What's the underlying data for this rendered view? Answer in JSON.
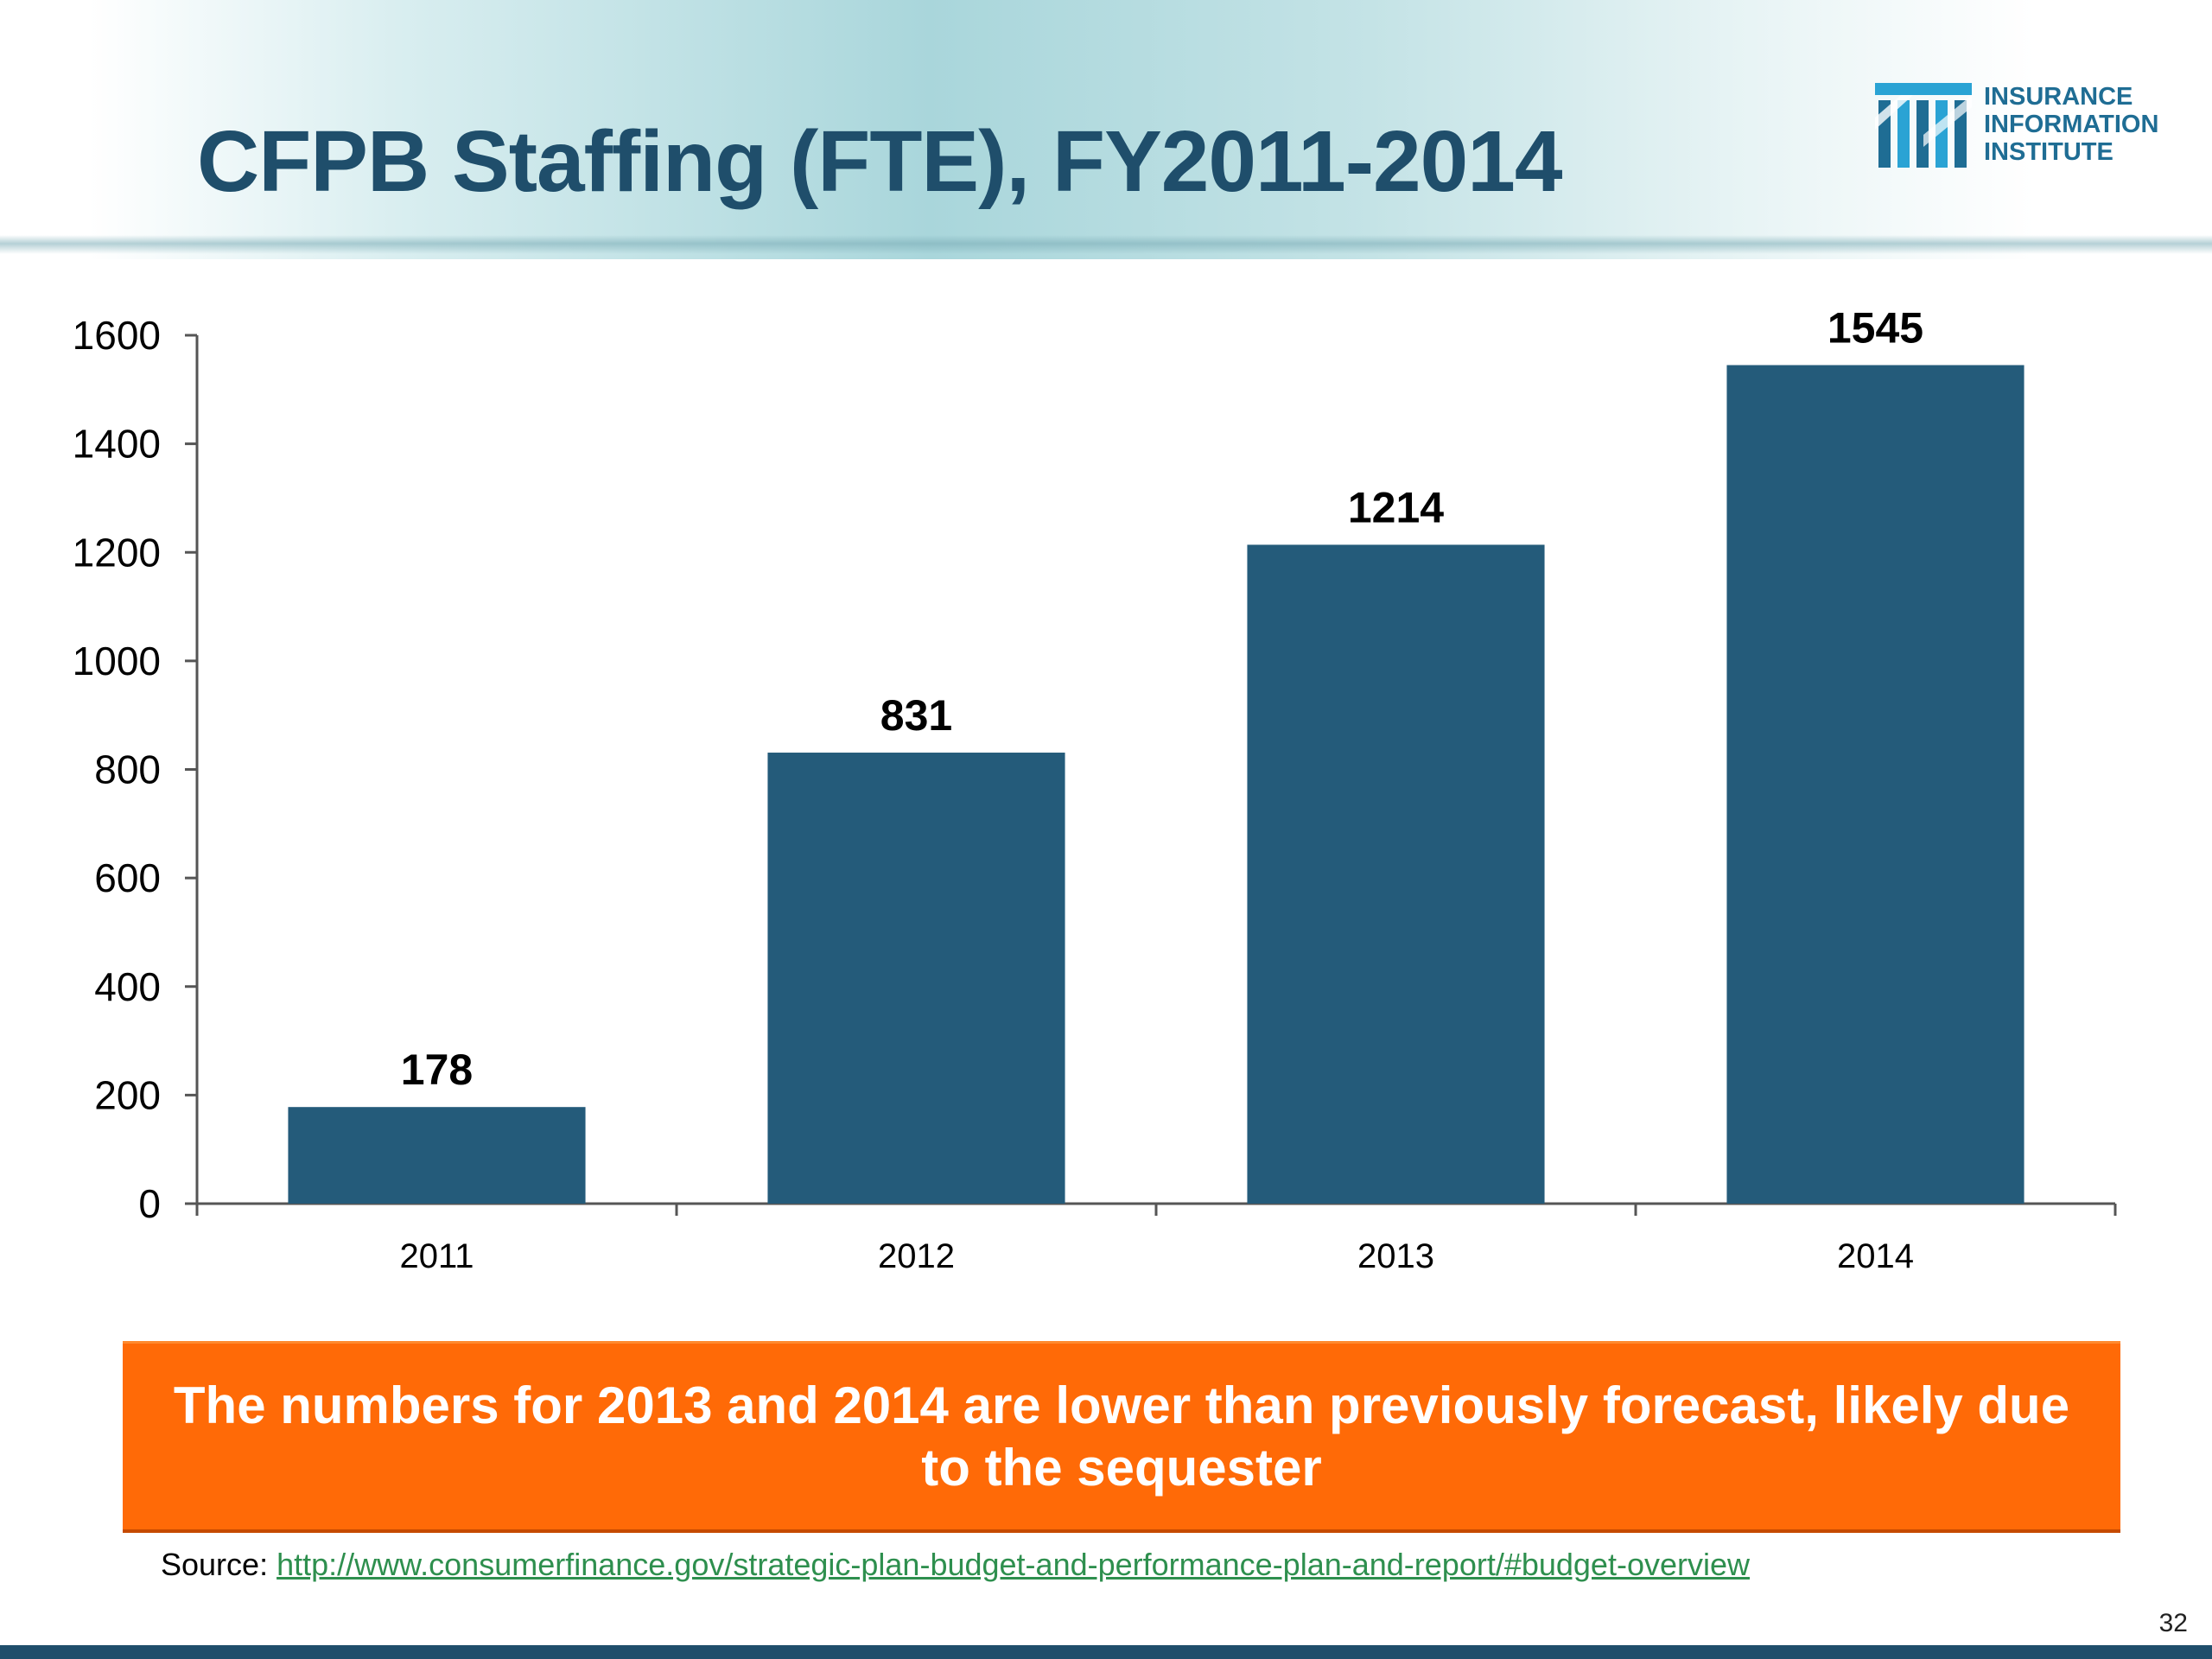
{
  "slide": {
    "title": "CFPB Staffing (FTE), FY2011-2014",
    "logo": {
      "lines": [
        "INSURANCE",
        "INFORMATION",
        "INSTITUTE"
      ]
    },
    "callout": "The numbers for 2013 and 2014 are lower than previously forecast, likely due to the sequester",
    "source": {
      "label": "Source:",
      "url": "http://www.consumerfinance.gov/strategic-plan-budget-and-performance-plan-and-report/#budget-overview"
    },
    "page_number": "32"
  },
  "colors": {
    "title": "#1f4e6b",
    "bar": "#245b7a",
    "callout": "#ff6a07",
    "link": "#2e8f4e"
  },
  "chart_data": {
    "type": "bar",
    "categories": [
      "2011",
      "2012",
      "2013",
      "2014"
    ],
    "values": [
      178,
      831,
      1214,
      1545
    ],
    "data_labels": [
      "178",
      "831",
      "1214",
      "1545"
    ],
    "ylim": [
      0,
      1600
    ],
    "yticks": [
      0,
      200,
      400,
      600,
      800,
      1000,
      1200,
      1400,
      1600
    ],
    "grid": false,
    "legend": "none"
  }
}
